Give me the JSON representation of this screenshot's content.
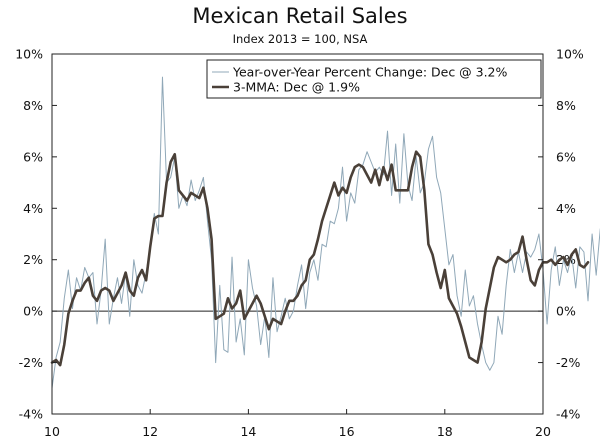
{
  "chart_data": {
    "type": "line",
    "title": "Mexican Retail Sales",
    "subtitle": "Index 2013 = 100, NSA",
    "xlabel": "",
    "ylabel": "",
    "xlim": [
      2010,
      2020
    ],
    "ylim": [
      -4,
      10
    ],
    "y_ticks": [
      -4,
      -2,
      0,
      2,
      4,
      6,
      8,
      10
    ],
    "y_tick_labels": [
      "-4%",
      "-2%",
      "0%",
      "2%",
      "4%",
      "6%",
      "8%",
      "10%"
    ],
    "x_ticks": [
      2010,
      2012,
      2014,
      2016,
      2018,
      2020
    ],
    "x_tick_labels": [
      "10",
      "12",
      "14",
      "16",
      "18",
      "20"
    ],
    "legend_position": "top-right",
    "series": [
      {
        "name": "Year-over-Year Percent Change: Dec @ 3.2%",
        "color": "#90a8b8",
        "start": 2010.0,
        "step": 0.0833333,
        "values": [
          -3.0,
          -1.8,
          -1.2,
          0.5,
          1.6,
          0.1,
          1.3,
          0.8,
          1.7,
          1.3,
          1.5,
          -0.5,
          0.8,
          2.8,
          -0.5,
          0.5,
          1.3,
          0.3,
          1.5,
          -0.2,
          2.0,
          1.0,
          0.7,
          1.5,
          2.5,
          3.8,
          3.0,
          9.1,
          5.0,
          5.2,
          6.0,
          4.0,
          4.5,
          4.1,
          5.1,
          4.3,
          4.7,
          5.2,
          3.5,
          2.0,
          -2.0,
          1.0,
          -1.5,
          -1.6,
          2.1,
          -1.2,
          -0.3,
          -1.7,
          2.0,
          0.9,
          0.2,
          -1.3,
          -0.2,
          -1.8,
          1.3,
          -0.8,
          -0.2,
          0.5,
          -0.3,
          0.0,
          1.0,
          1.8,
          0.1,
          1.5,
          2.0,
          1.2,
          2.6,
          2.5,
          3.5,
          3.4,
          4.0,
          5.6,
          3.5,
          4.6,
          4.2,
          5.5,
          5.7,
          6.2,
          5.8,
          5.4,
          5.6,
          5.3,
          7.0,
          4.5,
          6.5,
          4.2,
          6.9,
          4.9,
          4.3,
          6.0,
          4.6,
          5.0,
          6.3,
          6.8,
          5.2,
          4.6,
          3.2,
          1.8,
          2.2,
          0.6,
          -0.2,
          1.6,
          0.2,
          0.6,
          -0.5,
          -1.3,
          -2.0,
          -2.3,
          -2.0,
          -0.2,
          -0.9,
          1.0,
          2.4,
          1.5,
          2.3,
          1.5,
          2.3,
          2.1,
          2.4,
          3.0,
          1.6,
          -0.5,
          1.6,
          2.5,
          1.0,
          2.0,
          1.5,
          2.2,
          0.9,
          2.5,
          2.3,
          0.4,
          3.0,
          1.4,
          3.2
        ]
      },
      {
        "name": "3-MMA: Dec @ 1.9%",
        "color": "#4a4038",
        "start": 2010.0,
        "step": 0.0833333,
        "values": [
          -2.0,
          -1.9,
          -2.1,
          -1.3,
          -0.1,
          0.4,
          0.8,
          0.8,
          1.1,
          1.3,
          0.6,
          0.4,
          0.8,
          0.9,
          0.8,
          0.4,
          0.7,
          1.0,
          1.5,
          0.8,
          0.6,
          1.3,
          1.6,
          1.2,
          2.5,
          3.6,
          3.7,
          3.7,
          5.0,
          5.8,
          6.1,
          4.7,
          4.5,
          4.3,
          4.6,
          4.5,
          4.4,
          4.8,
          4.0,
          2.8,
          -0.3,
          -0.2,
          -0.1,
          0.5,
          0.1,
          0.3,
          0.8,
          -0.3,
          0.0,
          0.3,
          0.6,
          0.3,
          -0.2,
          -0.7,
          -0.3,
          -0.4,
          -0.5,
          0.0,
          0.4,
          0.4,
          0.6,
          1.0,
          1.2,
          2.0,
          2.2,
          2.8,
          3.5,
          4.0,
          4.5,
          5.0,
          4.5,
          4.8,
          4.6,
          5.2,
          5.6,
          5.7,
          5.6,
          5.3,
          5.0,
          5.5,
          4.9,
          5.6,
          5.1,
          5.7,
          4.7,
          4.7,
          4.7,
          4.7,
          5.6,
          6.2,
          6.0,
          4.7,
          2.6,
          2.2,
          1.5,
          0.9,
          1.6,
          0.5,
          0.2,
          -0.1,
          -0.6,
          -1.2,
          -1.8,
          -1.9,
          -2.0,
          -1.2,
          0.1,
          0.9,
          1.7,
          2.1,
          2.0,
          1.9,
          2.0,
          2.2,
          2.3,
          2.9,
          2.0,
          1.2,
          1.0,
          1.6,
          1.9,
          1.9,
          2.0,
          1.8,
          2.0,
          2.1,
          1.8,
          2.2,
          2.4,
          1.8,
          1.7,
          1.9
        ]
      }
    ]
  }
}
